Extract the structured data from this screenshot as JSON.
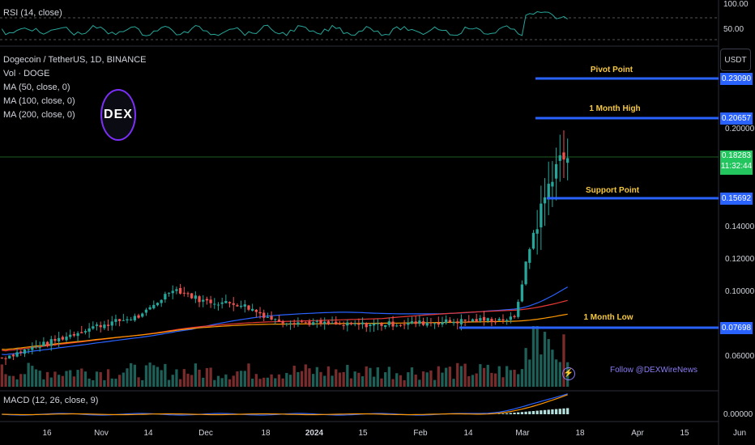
{
  "header": {
    "rsi_label": "RSI (14, close)",
    "macd_label": "MACD (12, 26, close, 9)",
    "legend": [
      "Dogecoin / TetherUS, 1D, BINANCE",
      "Vol · DOGE",
      "MA (50, close, 0)",
      "MA (100, close, 0)",
      "MA (200, close, 0)"
    ],
    "currency": "USDT",
    "logo": "DEX",
    "watermark": "Follow @DEXWireNews"
  },
  "axes": {
    "rsi_ticks": [
      "100.00",
      "50.00"
    ],
    "price_ticks": [
      "0.20000",
      "0.14000",
      "0.12000",
      "0.10000",
      "0.06000"
    ],
    "macd_ticks": [
      "0.00000"
    ],
    "x_ticks": [
      "16",
      "Nov",
      "14",
      "Dec",
      "18",
      "2024",
      "15",
      "Feb",
      "14",
      "Mar",
      "18",
      "Apr",
      "15",
      "Jun"
    ]
  },
  "levels": [
    {
      "name": "Pivot Point",
      "value": "0.23090"
    },
    {
      "name": "1 Month High",
      "value": "0.20657"
    },
    {
      "name": "Support Point",
      "value": "0.15692"
    },
    {
      "name": "1 Month Low",
      "value": "0.07698"
    }
  ],
  "current_price": {
    "value": "0.18283",
    "countdown": "11:32:44"
  },
  "colors": {
    "up": "#26a69a",
    "down": "#ef5350",
    "level": "#2962ff",
    "ma50": "#2962ff",
    "ma100": "#e53935",
    "ma200": "#ff9800",
    "rsi": "#26a69a",
    "macd": "#2962ff",
    "signal": "#ff9800",
    "annotation": "#f5c842",
    "price_tag": "#22c55e"
  },
  "chart_data": {
    "type": "candlestick",
    "title": "Dogecoin / TetherUS, 1D, BINANCE",
    "ylim": [
      0.045,
      0.245
    ],
    "last": 0.18283,
    "ohlc_anchors": [
      {
        "x": "Oct 16",
        "price": 0.059
      },
      {
        "x": "Nov 1",
        "price": 0.068
      },
      {
        "x": "Nov 14",
        "price": 0.078
      },
      {
        "x": "Dec 1",
        "price": 0.085
      },
      {
        "x": "Dec 10",
        "price": 0.102
      },
      {
        "x": "Dec 20",
        "price": 0.094
      },
      {
        "x": "Jan 1",
        "price": 0.092
      },
      {
        "x": "Jan 12",
        "price": 0.082
      },
      {
        "x": "Feb 1",
        "price": 0.079
      },
      {
        "x": "Feb 20",
        "price": 0.086
      },
      {
        "x": "Mar 1",
        "price": 0.128
      },
      {
        "x": "Mar 5",
        "price": 0.18
      },
      {
        "x": "Mar 12",
        "price": 0.183
      }
    ],
    "ma50_end": 0.107,
    "ma100_end": 0.097,
    "ma200_end": 0.083
  }
}
